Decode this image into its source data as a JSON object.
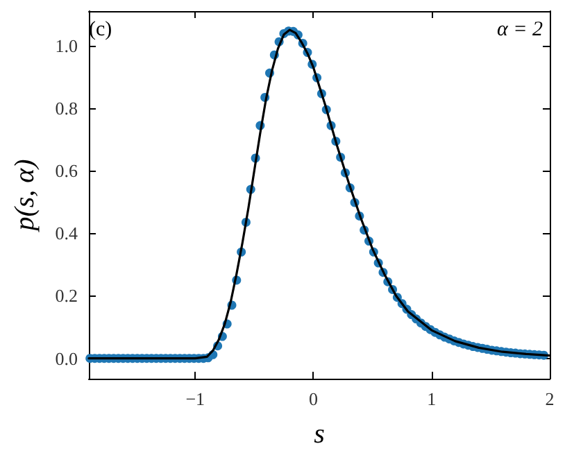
{
  "chart_data": {
    "type": "scatter",
    "xlabel": "s",
    "ylabel": "p(s, α)",
    "annotations": [
      "(c)",
      "α = 2"
    ],
    "xlim": [
      -1.9,
      2
    ],
    "ylim": [
      -0.065,
      1.11
    ],
    "xticks": [
      {
        "value": -1,
        "label": "−1"
      },
      0,
      1,
      2
    ],
    "yticks": [
      {
        "value": 0,
        "label": "0.0"
      },
      {
        "value": 0.2,
        "label": "0.2"
      },
      {
        "value": 0.4,
        "label": "0.4"
      },
      {
        "value": 0.6,
        "label": "0.6"
      },
      {
        "value": 0.8,
        "label": "0.8"
      },
      {
        "value": 1,
        "label": "1.0"
      }
    ],
    "grid": false,
    "series": [
      {
        "type": "line",
        "color": "#000000",
        "line_style": "solid",
        "marker": "none",
        "x": [
          -1.9,
          -1.0,
          -0.9,
          -0.85,
          -0.8,
          -0.75,
          -0.7,
          -0.65,
          -0.6,
          -0.55,
          -0.5,
          -0.45,
          -0.4,
          -0.35,
          -0.3,
          -0.25,
          -0.2,
          -0.15,
          -0.1,
          -0.05,
          0,
          0.1,
          0.2,
          0.3,
          0.4,
          0.5,
          0.6,
          0.7,
          0.8,
          1.0,
          1.2,
          1.4,
          1.6,
          1.8,
          2.0
        ],
        "values": [
          0,
          0,
          0.005,
          0.025,
          0.06,
          0.11,
          0.18,
          0.27,
          0.37,
          0.48,
          0.6,
          0.72,
          0.83,
          0.92,
          0.99,
          1.035,
          1.05,
          1.04,
          1.01,
          0.975,
          0.93,
          0.81,
          0.68,
          0.56,
          0.45,
          0.35,
          0.27,
          0.2,
          0.15,
          0.09,
          0.055,
          0.034,
          0.021,
          0.014,
          0.009
        ]
      },
      {
        "color": "#1f77b4",
        "marker": "circle",
        "x": [
          -1.89,
          -1.85,
          -1.81,
          -1.77,
          -1.73,
          -1.69,
          -1.65,
          -1.61,
          -1.57,
          -1.53,
          -1.49,
          -1.45,
          -1.41,
          -1.37,
          -1.33,
          -1.29,
          -1.25,
          -1.21,
          -1.17,
          -1.13,
          -1.09,
          -1.05,
          -1.01,
          -0.97,
          -0.93,
          -0.89,
          -0.85,
          -0.81,
          -0.77,
          -0.73,
          -0.69,
          -0.65,
          -0.61,
          -0.57,
          -0.53,
          -0.49,
          -0.45,
          -0.41,
          -0.37,
          -0.33,
          -0.29,
          -0.25,
          -0.21,
          -0.17,
          -0.13,
          -0.09,
          -0.05,
          -0.01,
          0.03,
          0.07,
          0.11,
          0.15,
          0.19,
          0.23,
          0.27,
          0.31,
          0.35,
          0.39,
          0.43,
          0.47,
          0.51,
          0.55,
          0.59,
          0.63,
          0.67,
          0.71,
          0.75,
          0.79,
          0.83,
          0.87,
          0.91,
          0.95,
          0.99,
          1.03,
          1.07,
          1.11,
          1.15,
          1.19,
          1.23,
          1.27,
          1.31,
          1.35,
          1.39,
          1.43,
          1.47,
          1.51,
          1.55,
          1.59,
          1.63,
          1.67,
          1.71,
          1.75,
          1.79,
          1.83,
          1.87,
          1.91,
          1.95
        ],
        "values": [
          0,
          0,
          0,
          0,
          0,
          0,
          0,
          0,
          0,
          0,
          0,
          0,
          0,
          0,
          0,
          0,
          0,
          0,
          0,
          0,
          0,
          0,
          0,
          0,
          0,
          0.002,
          0.012,
          0.04,
          0.07,
          0.11,
          0.17,
          0.25,
          0.34,
          0.435,
          0.54,
          0.64,
          0.744,
          0.834,
          0.912,
          0.97,
          1.012,
          1.038,
          1.046,
          1.045,
          1.034,
          1.007,
          0.978,
          0.94,
          0.897,
          0.846,
          0.795,
          0.744,
          0.694,
          0.643,
          0.593,
          0.545,
          0.498,
          0.455,
          0.41,
          0.375,
          0.34,
          0.305,
          0.275,
          0.245,
          0.22,
          0.195,
          0.175,
          0.157,
          0.14,
          0.126,
          0.113,
          0.102,
          0.092,
          0.083,
          0.075,
          0.068,
          0.062,
          0.056,
          0.051,
          0.046,
          0.042,
          0.038,
          0.035,
          0.032,
          0.029,
          0.026,
          0.024,
          0.022,
          0.02,
          0.018,
          0.017,
          0.015,
          0.014,
          0.013,
          0.012,
          0.011,
          0.01
        ]
      }
    ]
  }
}
